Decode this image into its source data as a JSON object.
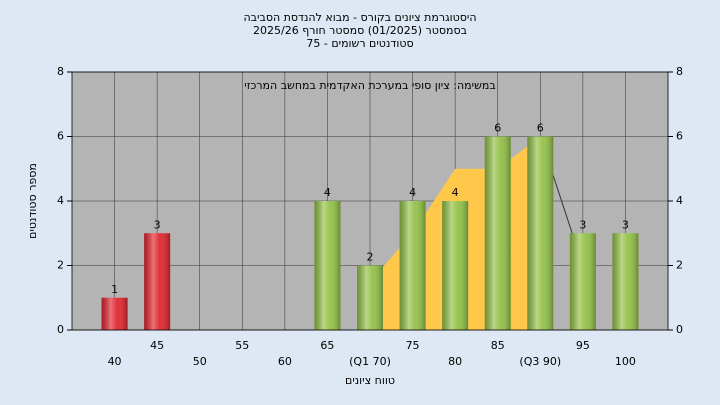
{
  "chart_data": {
    "type": "bar",
    "title": [
      "היסטוגרמת ציונים בקורס - מבוא להנדסת הסביבה",
      "בסמסטר  (01/2025)  סמסטר חורף 2025/26",
      "סטודנטים רשומים - 75"
    ],
    "annotation": "במשימה: ציון סופי במערכת האקדמית במחשב המרכזי",
    "xlabel": "טווח ציונים",
    "ylabel": "מספר סטודנטים",
    "categories": [
      "40",
      "45",
      "50",
      "55",
      "60",
      "65",
      "(Q1 70)",
      "75",
      "80",
      "85",
      "(Q3 90)",
      "95",
      "100"
    ],
    "series": [
      {
        "values": [
          1,
          3,
          0,
          0,
          0,
          4,
          2,
          4,
          4,
          6,
          6,
          3,
          3
        ],
        "colors": [
          "#e0262e",
          "#e0262e",
          "#e0262e",
          "#e0262e",
          "#e0262e",
          "#93c147",
          "#93c147",
          "#93c147",
          "#93c147",
          "#93c147",
          "#93c147",
          "#93c147",
          "#93c147"
        ]
      },
      {
        "type": "area",
        "color": "#ffc84a",
        "values": [
          null,
          null,
          null,
          null,
          null,
          null,
          1.5,
          3,
          5,
          5,
          6,
          null,
          null
        ]
      },
      {
        "type": "line",
        "color": "#333333",
        "values": [
          null,
          null,
          null,
          null,
          null,
          null,
          null,
          null,
          null,
          null,
          6,
          2,
          null
        ]
      }
    ],
    "ylim": [
      0,
      8
    ],
    "yticks": [
      0,
      2,
      4,
      6,
      8
    ],
    "y2lim": [
      0,
      8
    ],
    "y2ticks": [
      0,
      2,
      4,
      6,
      8
    ],
    "grid": true,
    "plot_color": "#b4b4b4"
  }
}
